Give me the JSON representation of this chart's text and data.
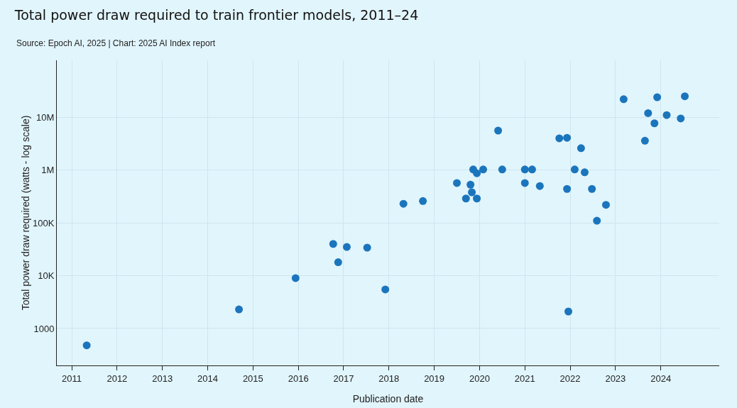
{
  "chart_data": {
    "type": "scatter",
    "title": "Total power draw required to train frontier models, 2011–24",
    "annotations": [
      "Source: Epoch AI, 2025 | Chart: 2025 AI Index report"
    ],
    "xlabel": "Publication date",
    "ylabel": "Total power draw required (watts - log scale)",
    "x": [
      2011.33,
      2014.69,
      2015.94,
      2016.77,
      2016.88,
      2017.07,
      2017.52,
      2017.92,
      2018.32,
      2018.75,
      2019.5,
      2019.7,
      2019.8,
      2019.83,
      2019.86,
      2019.94,
      2019.94,
      2020.08,
      2020.41,
      2020.5,
      2021.0,
      2021.0,
      2021.16,
      2021.33,
      2021.76,
      2021.93,
      2021.93,
      2021.96,
      2022.1,
      2022.24,
      2022.32,
      2022.48,
      2022.59,
      2022.79,
      2023.18,
      2023.65,
      2023.72,
      2023.86,
      2023.92,
      2024.13,
      2024.44,
      2024.53
    ],
    "series": [
      {
        "color": "#1b75bc",
        "values": [
          480,
          2300,
          9000,
          40000,
          18000,
          35000,
          34000,
          5500,
          230000,
          260000,
          570000,
          290000,
          530000,
          380000,
          1030000,
          870000,
          290000,
          1030000,
          5600000,
          1030000,
          1030000,
          570000,
          1030000,
          500000,
          4000000,
          4100000,
          440000,
          2100,
          1030000,
          2600000,
          910000,
          440000,
          110000,
          220000,
          22000000,
          3600000,
          12000000,
          7700000,
          24000000,
          11000000,
          9500000,
          25000000
        ]
      }
    ],
    "log": "y",
    "xlim": [
      2010.67,
      2025.29
    ],
    "ylim": [
      200,
      120000000
    ],
    "xticks": [
      2011,
      2012,
      2013,
      2014,
      2015,
      2016,
      2017,
      2018,
      2019,
      2020,
      2021,
      2022,
      2023,
      2024
    ],
    "yticks": [
      1000,
      {
        "value": 10000,
        "label": "10K"
      },
      {
        "value": 100000,
        "label": "100K"
      },
      {
        "value": 1000000,
        "label": "1M"
      },
      {
        "value": 10000000,
        "label": "10M"
      }
    ],
    "grid": true,
    "marker": "circle"
  }
}
